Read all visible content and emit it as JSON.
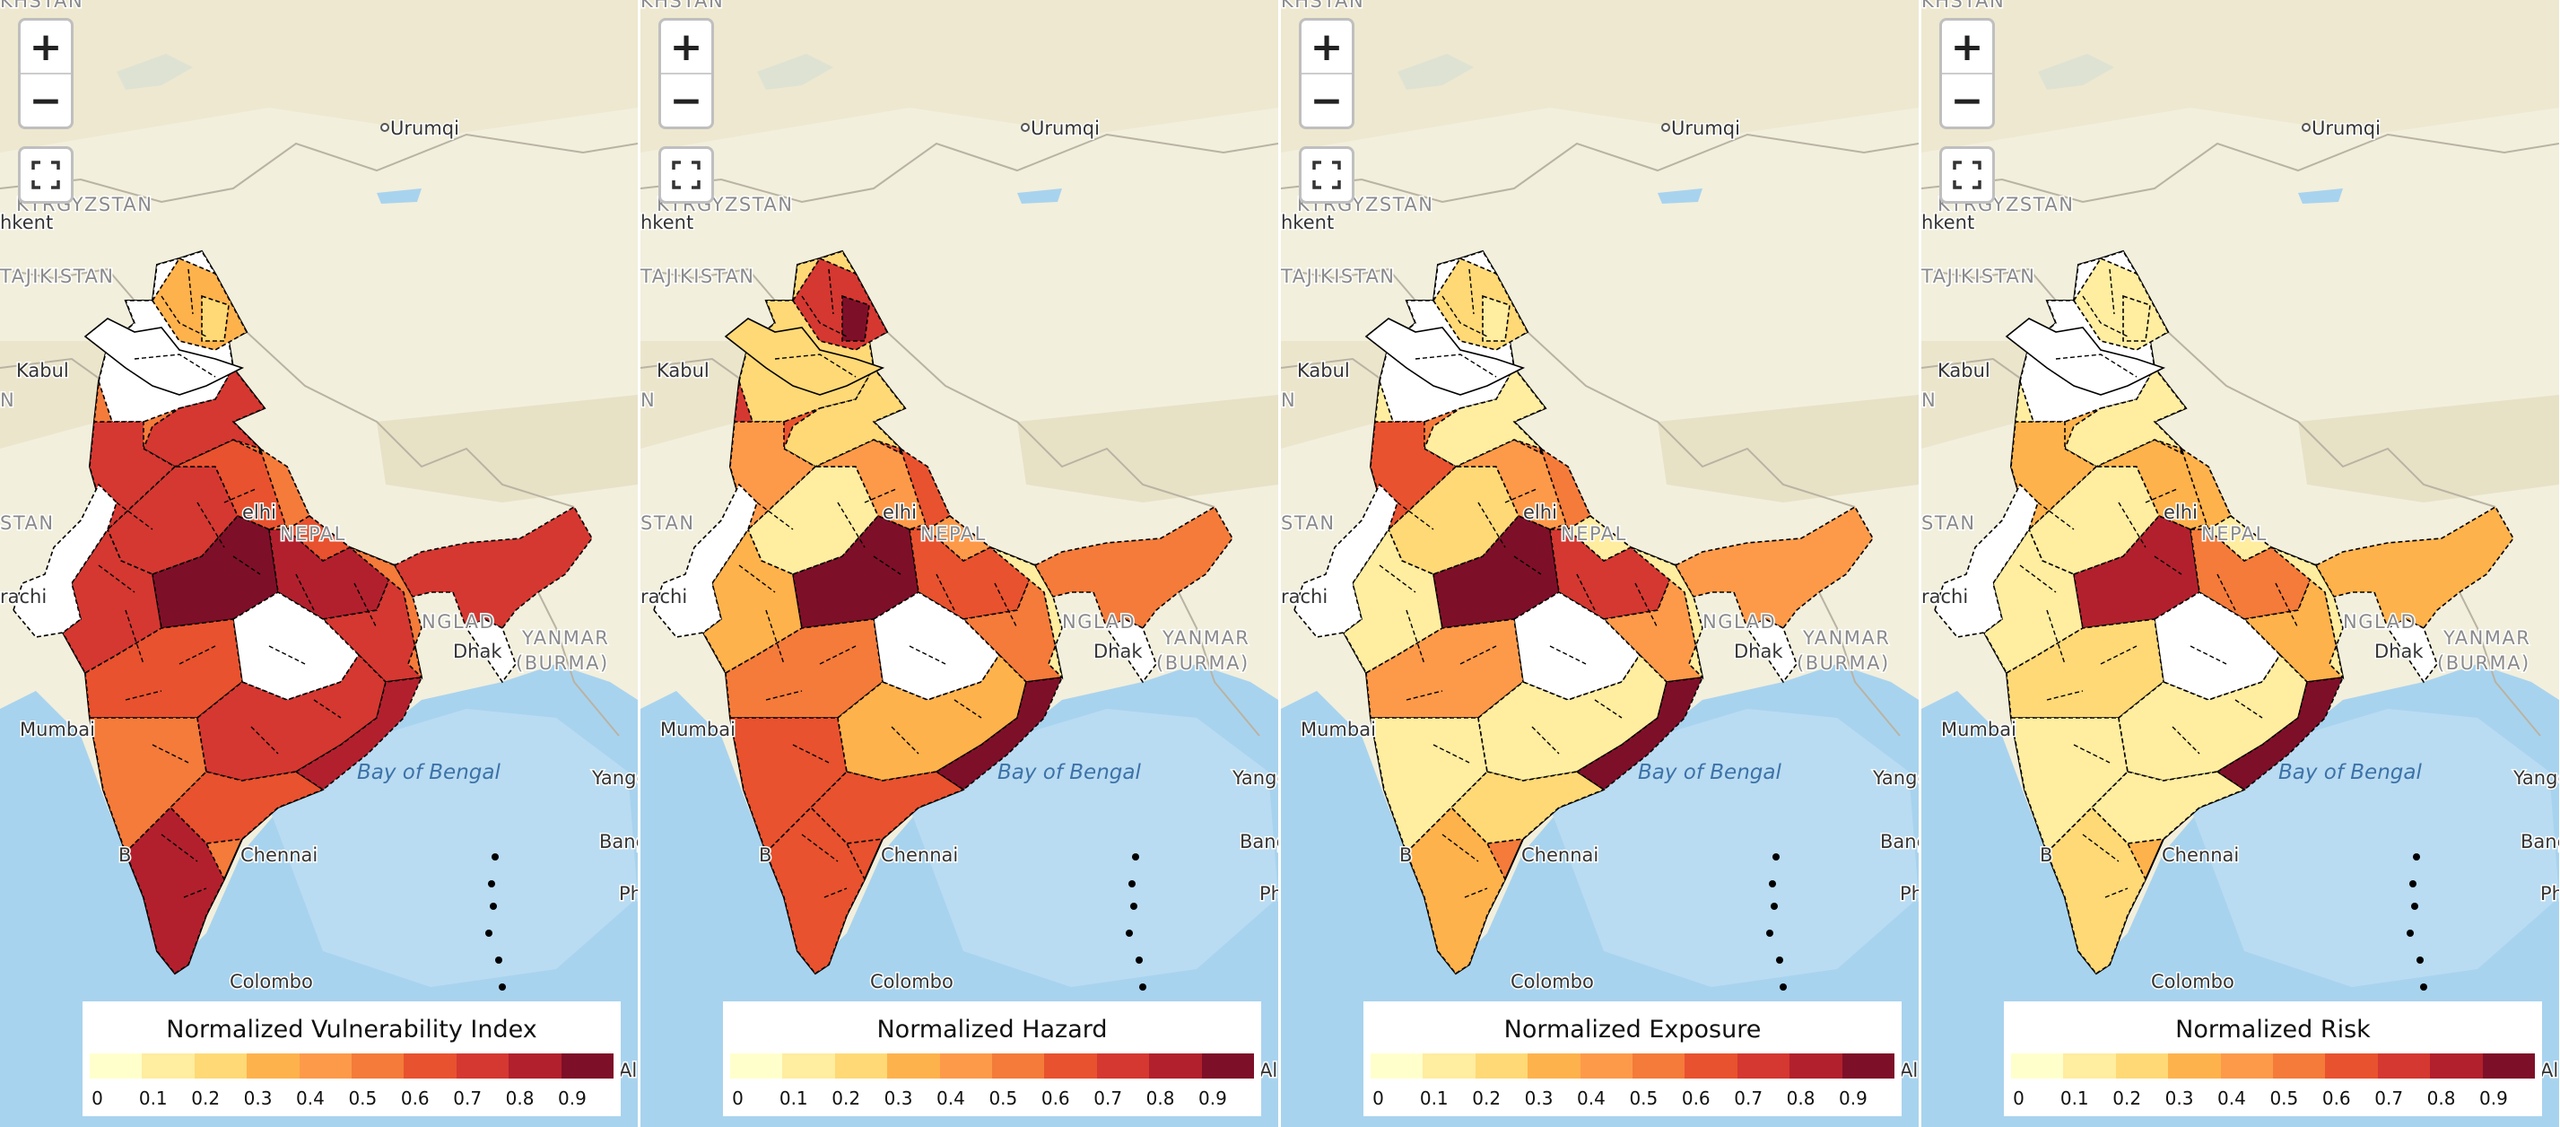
{
  "controls": {
    "zoom_in": "+",
    "zoom_out": "−"
  },
  "place_labels": [
    {
      "name": "KHSTAN",
      "kind": "country-partial"
    },
    {
      "name": "Urumqi",
      "kind": "city"
    },
    {
      "name": "KYRGYZSTAN",
      "kind": "country"
    },
    {
      "name": "hkent",
      "kind": "city-partial"
    },
    {
      "name": "TAJIKISTAN",
      "kind": "country"
    },
    {
      "name": "Kabul",
      "kind": "city"
    },
    {
      "name": "N",
      "kind": "country-partial"
    },
    {
      "name": "STAN",
      "kind": "country-partial"
    },
    {
      "name": "elhi",
      "kind": "city-partial"
    },
    {
      "name": "NEPAL",
      "kind": "country"
    },
    {
      "name": "rachi",
      "kind": "city-partial"
    },
    {
      "name": "NGLAD",
      "kind": "country-partial"
    },
    {
      "name": "YANMAR",
      "kind": "country-partial"
    },
    {
      "name": "(BURMA)",
      "kind": "country-partial"
    },
    {
      "name": "Dhak",
      "kind": "city-partial"
    },
    {
      "name": "Mumbai",
      "kind": "city-partial"
    },
    {
      "name": "Bay of Bengal",
      "kind": "water"
    },
    {
      "name": "Yangon",
      "kind": "city"
    },
    {
      "name": "Bang",
      "kind": "city-partial"
    },
    {
      "name": "B",
      "kind": "city-partial"
    },
    {
      "name": "Chennai",
      "kind": "city"
    },
    {
      "name": "Ph",
      "kind": "city-partial"
    },
    {
      "name": "Colombo",
      "kind": "city"
    },
    {
      "name": "Al",
      "kind": "city-partial"
    }
  ],
  "legend": {
    "ticks": [
      "0",
      "0.1",
      "0.2",
      "0.3",
      "0.4",
      "0.5",
      "0.6",
      "0.7",
      "0.8",
      "0.9"
    ],
    "colors": [
      "#ffffcc",
      "#ffeda0",
      "#fed976",
      "#feb24c",
      "#fd9a4a",
      "#f47b3a",
      "#e8522e",
      "#d43831",
      "#b2202d",
      "#7e0f28"
    ]
  },
  "maps": [
    {
      "legend_title": "Normalized Vulnerability Index",
      "region_values": [
        0.0,
        0.3,
        0.2,
        0.7,
        0.6,
        0.5,
        0.7,
        0.9,
        0.8,
        0.7,
        0.0,
        0.6,
        0.5,
        0.7,
        0.6,
        0.8,
        0.8,
        0.7,
        0.5,
        0.6,
        0.7,
        0.5,
        0.5
      ]
    },
    {
      "legend_title": "Normalized Hazard",
      "region_values": [
        0.2,
        0.7,
        0.9,
        0.1,
        0.4,
        0.6,
        0.3,
        0.9,
        0.6,
        0.5,
        0.0,
        0.5,
        0.6,
        0.3,
        0.6,
        0.6,
        0.9,
        0.2,
        0.1,
        0.4,
        0.4,
        0.7,
        0.3
      ]
    },
    {
      "legend_title": "Normalized Exposure",
      "region_values": [
        0.0,
        0.2,
        0.1,
        0.2,
        0.4,
        0.5,
        0.1,
        0.9,
        0.7,
        0.4,
        0.0,
        0.4,
        0.1,
        0.1,
        0.2,
        0.3,
        0.9,
        0.1,
        0.1,
        0.1,
        0.6,
        0.1,
        0.2
      ]
    },
    {
      "legend_title": "Normalized Risk",
      "region_values": [
        0.0,
        0.1,
        0.1,
        0.1,
        0.3,
        0.3,
        0.1,
        0.8,
        0.5,
        0.3,
        0.0,
        0.2,
        0.1,
        0.1,
        0.1,
        0.2,
        0.9,
        0.1,
        0.1,
        0.1,
        0.3,
        0.1,
        0.1
      ]
    }
  ]
}
